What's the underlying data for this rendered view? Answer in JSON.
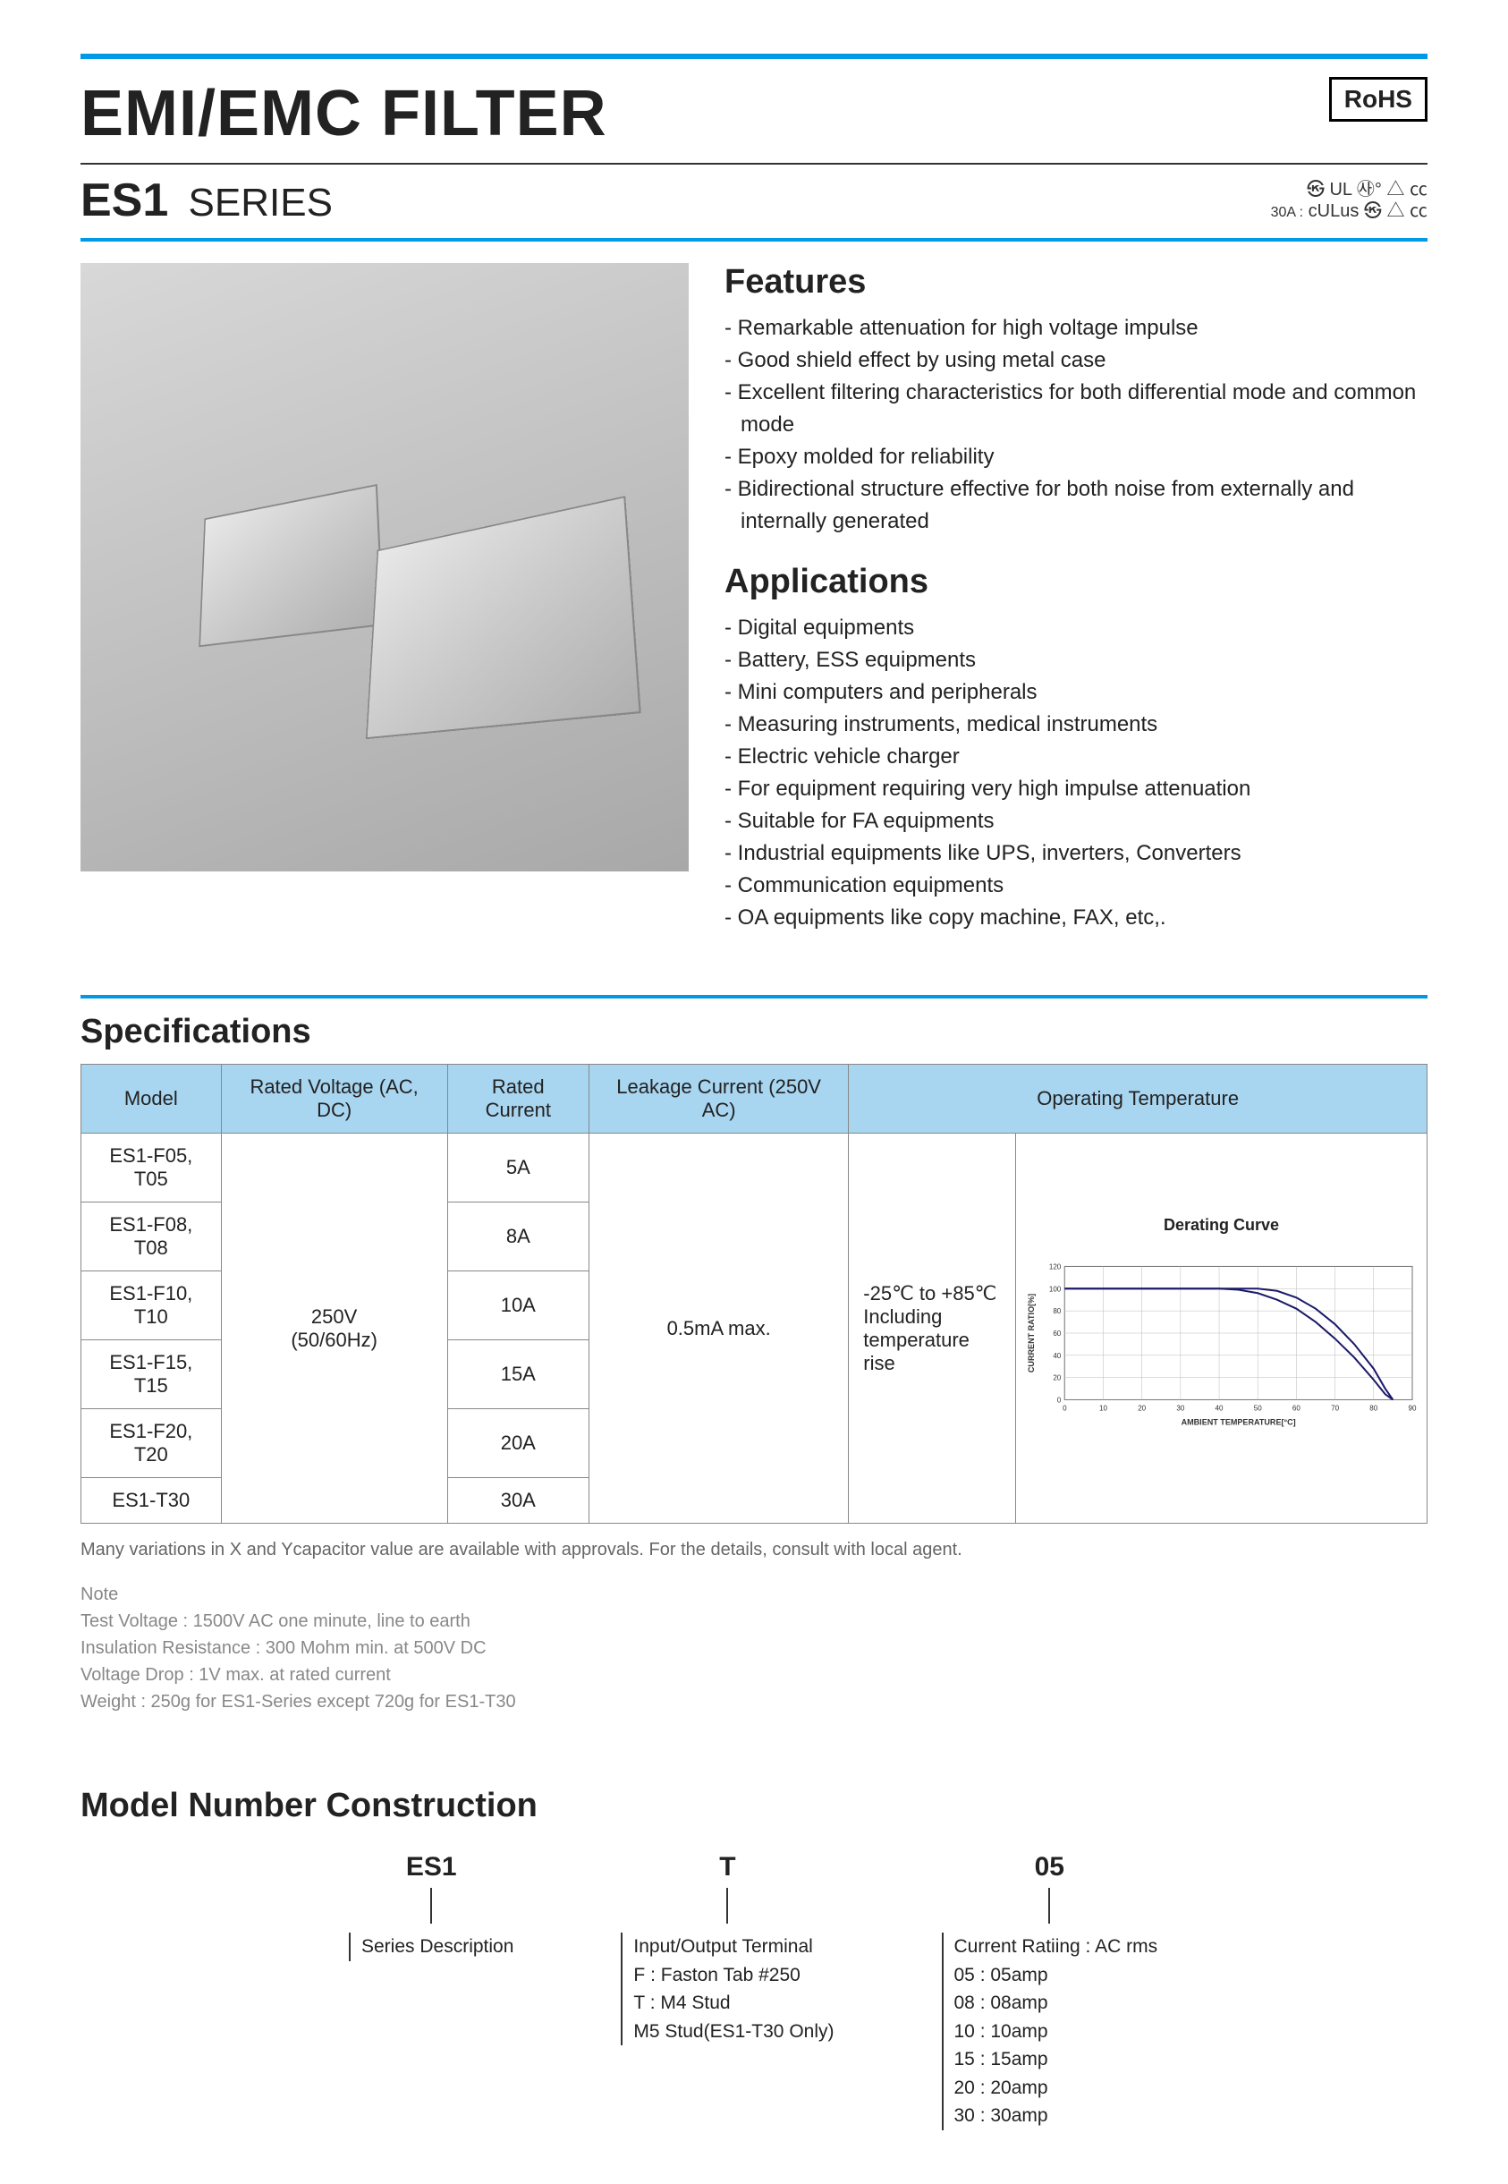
{
  "header": {
    "title": "EMI/EMC FILTER",
    "rohs": "RoHS",
    "series_bold": "ES1",
    "series_light": "SERIES",
    "cert_note_prefix": "30A :",
    "cert_icons_line1": "㉿  UL  ㉴°  △  ㏄",
    "cert_icons_line2": "cULus  ㉿  △  ㏄"
  },
  "features": {
    "heading": "Features",
    "items": [
      "Remarkable attenuation for high voltage impulse",
      "Good shield effect by using metal case",
      "Excellent filtering characteristics for both differential mode and common mode",
      "Epoxy molded for reliability",
      "Bidirectional structure effective for both noise from externally and internally generated"
    ]
  },
  "applications": {
    "heading": "Applications",
    "items": [
      "Digital equipments",
      "Battery, ESS equipments",
      "Mini computers and peripherals",
      "Measuring instruments, medical instruments",
      "Electric vehicle charger",
      "For equipment requiring very high impulse attenuation",
      "Suitable for FA equipments",
      "Industrial equipments like UPS, inverters, Converters",
      "Communication equipments",
      "OA equipments like copy machine, FAX, etc,."
    ]
  },
  "specifications": {
    "heading": "Specifications",
    "columns": [
      "Model",
      "Rated Voltage (AC, DC)",
      "Rated Current",
      "Leakage Current (250V AC)",
      "Operating Temperature"
    ],
    "rated_voltage": "250V\n(50/60Hz)",
    "leakage": "0.5mA max.",
    "op_temp_text": "-25℃ to +85℃\nIncluding\ntemperature rise",
    "rows": [
      {
        "model": "ES1-F05, T05",
        "current": "5A"
      },
      {
        "model": "ES1-F08, T08",
        "current": "8A"
      },
      {
        "model": "ES1-F10, T10",
        "current": "10A"
      },
      {
        "model": "ES1-F15, T15",
        "current": "15A"
      },
      {
        "model": "ES1-F20, T20",
        "current": "20A"
      },
      {
        "model": "ES1-T30",
        "current": "30A"
      }
    ],
    "footnote": "Many variations in X and Ycapacitor value are available with approvals. For the details, consult with local agent.",
    "note_label": "Note",
    "notes": [
      "Test Voltage : 1500V AC one minute, line to earth",
      "Insulation Resistance : 300 Mohm min. at 500V DC",
      "Voltage Drop : 1V max. at rated current",
      "Weight : 250g for ES1-Series except 720g for ES1-T30"
    ]
  },
  "derating_chart": {
    "title": "Derating Curve",
    "type": "line",
    "xlabel": "AMBIENT TEMPERATURE[°C]",
    "ylabel": "CURRENT RATIO[%]",
    "xlim": [
      0,
      90
    ],
    "ylim": [
      0,
      120
    ],
    "xtick_step": 10,
    "ytick_step": 20,
    "grid_color": "#bbbbbb",
    "axis_color": "#333333",
    "line_color": "#1a1a6a",
    "line_width": 2,
    "background_color": "#ffffff",
    "label_fontsize": 9,
    "tick_fontsize": 8,
    "series": [
      {
        "x": [
          0,
          10,
          20,
          30,
          40,
          50,
          55,
          60,
          65,
          70,
          75,
          80,
          83,
          85
        ],
        "y": [
          100,
          100,
          100,
          100,
          100,
          100,
          98,
          92,
          82,
          68,
          50,
          28,
          10,
          0
        ]
      },
      {
        "x": [
          0,
          10,
          20,
          30,
          40,
          45,
          50,
          55,
          60,
          65,
          70,
          75,
          80,
          83,
          85
        ],
        "y": [
          100,
          100,
          100,
          100,
          100,
          99,
          96,
          90,
          82,
          70,
          55,
          38,
          18,
          5,
          0
        ]
      }
    ]
  },
  "model_construction": {
    "heading": "Model Number Construction",
    "parts": [
      {
        "code": "ES1",
        "desc": "Series Description"
      },
      {
        "code": "T",
        "desc": "Input/Output Terminal\nF : Faston Tab #250\nT : M4 Stud\nM5 Stud(ES1-T30 Only)"
      },
      {
        "code": "05",
        "desc": "Current Ratiing : AC rms\n05 : 05amp\n08 : 08amp\n10 : 10amp\n15 : 15amp\n20 : 20amp\n30 : 30amp"
      }
    ]
  },
  "colors": {
    "accent": "#0099e5",
    "header_bg": "#a8d5f0",
    "text": "#222222",
    "muted": "#888888"
  }
}
